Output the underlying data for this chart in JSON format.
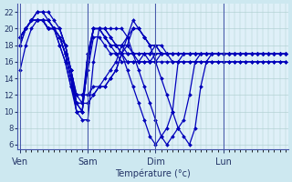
{
  "xlabel": "Température (°c)",
  "ylim": [
    5.5,
    23
  ],
  "yticks": [
    6,
    8,
    10,
    12,
    14,
    16,
    18,
    20,
    22
  ],
  "day_labels": [
    "Ven",
    "Sam",
    "Dim",
    "Lun"
  ],
  "day_positions": [
    0,
    12,
    24,
    36
  ],
  "total_points": 48,
  "background_color": "#cde8f0",
  "plot_background": "#dff0f8",
  "line_color": "#0000bb",
  "marker": "D",
  "markersize": 2.0,
  "linewidth": 0.9,
  "series": [
    [
      15,
      18,
      20,
      21,
      21,
      21,
      20,
      19,
      17,
      14,
      10,
      9,
      9,
      16,
      20,
      20,
      19,
      18,
      18,
      18,
      17,
      17,
      17,
      17,
      17,
      17,
      17,
      17,
      17,
      17,
      17,
      17,
      17,
      17,
      17,
      17,
      17,
      17,
      17,
      17,
      17,
      17,
      17,
      17,
      17,
      17,
      17,
      17
    ],
    [
      18,
      20,
      21,
      21,
      21,
      21,
      20,
      20,
      18,
      15,
      11,
      10,
      16,
      20,
      20,
      19,
      18,
      18,
      18,
      17,
      17,
      17,
      17,
      16,
      16,
      17,
      17,
      17,
      17,
      17,
      17,
      17,
      17,
      17,
      17,
      17,
      17,
      17,
      17,
      17,
      17,
      17,
      17,
      17,
      17,
      17,
      17,
      17
    ],
    [
      18,
      20,
      21,
      22,
      22,
      21,
      20,
      20,
      18,
      15,
      11,
      10,
      17,
      20,
      20,
      19,
      18,
      18,
      17,
      17,
      17,
      16,
      16,
      16,
      17,
      17,
      17,
      17,
      17,
      17,
      17,
      17,
      17,
      17,
      17,
      17,
      17,
      17,
      17,
      17,
      17,
      17,
      17,
      17,
      17,
      17,
      17,
      17
    ],
    [
      19,
      20,
      21,
      22,
      22,
      22,
      21,
      20,
      18,
      15,
      12,
      11,
      17,
      20,
      20,
      19,
      18,
      17,
      17,
      16,
      16,
      16,
      17,
      17,
      18,
      17,
      17,
      17,
      17,
      17,
      17,
      17,
      17,
      17,
      17,
      17,
      17,
      17,
      17,
      17,
      17,
      17,
      17,
      17,
      17,
      17,
      17,
      17
    ],
    [
      19,
      20,
      21,
      21,
      21,
      20,
      20,
      19,
      17,
      14,
      11,
      11,
      11,
      12,
      13,
      13,
      14,
      15,
      17,
      18,
      20,
      20,
      19,
      18,
      18,
      18,
      17,
      17,
      17,
      17,
      17,
      17,
      17,
      17,
      17,
      17,
      17,
      17,
      17,
      17,
      17,
      17,
      17,
      17,
      17,
      17,
      17,
      17
    ],
    [
      19,
      20,
      21,
      21,
      21,
      20,
      20,
      18,
      16,
      13,
      11,
      11,
      15,
      19,
      19,
      18,
      17,
      17,
      16,
      16,
      16,
      16,
      16,
      16,
      16,
      16,
      16,
      16,
      16,
      16,
      16,
      16,
      16,
      16,
      16,
      16,
      16,
      16,
      16,
      16,
      16,
      16,
      16,
      16,
      16,
      16,
      16,
      16
    ],
    [
      19,
      20,
      21,
      21,
      21,
      20,
      20,
      19,
      17,
      14,
      12,
      12,
      12,
      13,
      13,
      14,
      15,
      16,
      18,
      19,
      20,
      20,
      19,
      18,
      18,
      17,
      17,
      16,
      16,
      16,
      16,
      16,
      16,
      16,
      16,
      16,
      16,
      16,
      16,
      16,
      16,
      16,
      16,
      16,
      16,
      16,
      16,
      16
    ],
    [
      19,
      20,
      21,
      21,
      21,
      20,
      20,
      19,
      17,
      14,
      10,
      10,
      16,
      20,
      20,
      20,
      20,
      20,
      20,
      19,
      17,
      15,
      13,
      11,
      9,
      7,
      6,
      7,
      8,
      9,
      12,
      16,
      17,
      17,
      17,
      17,
      17,
      17,
      17,
      17,
      17,
      17,
      17,
      17,
      17,
      17,
      17,
      17
    ],
    [
      19,
      20,
      21,
      21,
      21,
      20,
      20,
      19,
      18,
      15,
      12,
      12,
      12,
      12,
      13,
      13,
      14,
      15,
      17,
      19,
      21,
      20,
      19,
      18,
      16,
      14,
      12,
      10,
      8,
      7,
      6,
      8,
      13,
      16,
      17,
      17,
      17,
      17,
      17,
      17,
      17,
      17,
      17,
      17,
      17,
      17,
      17,
      17
    ],
    [
      19,
      20,
      21,
      21,
      21,
      20,
      20,
      18,
      16,
      13,
      10,
      10,
      16,
      20,
      20,
      20,
      19,
      18,
      17,
      15,
      13,
      11,
      9,
      7,
      6,
      7,
      8,
      10,
      16,
      17,
      17,
      17,
      17,
      17,
      17,
      17,
      17,
      17,
      17,
      17,
      17,
      17,
      17,
      17,
      17,
      17,
      17,
      17
    ]
  ]
}
